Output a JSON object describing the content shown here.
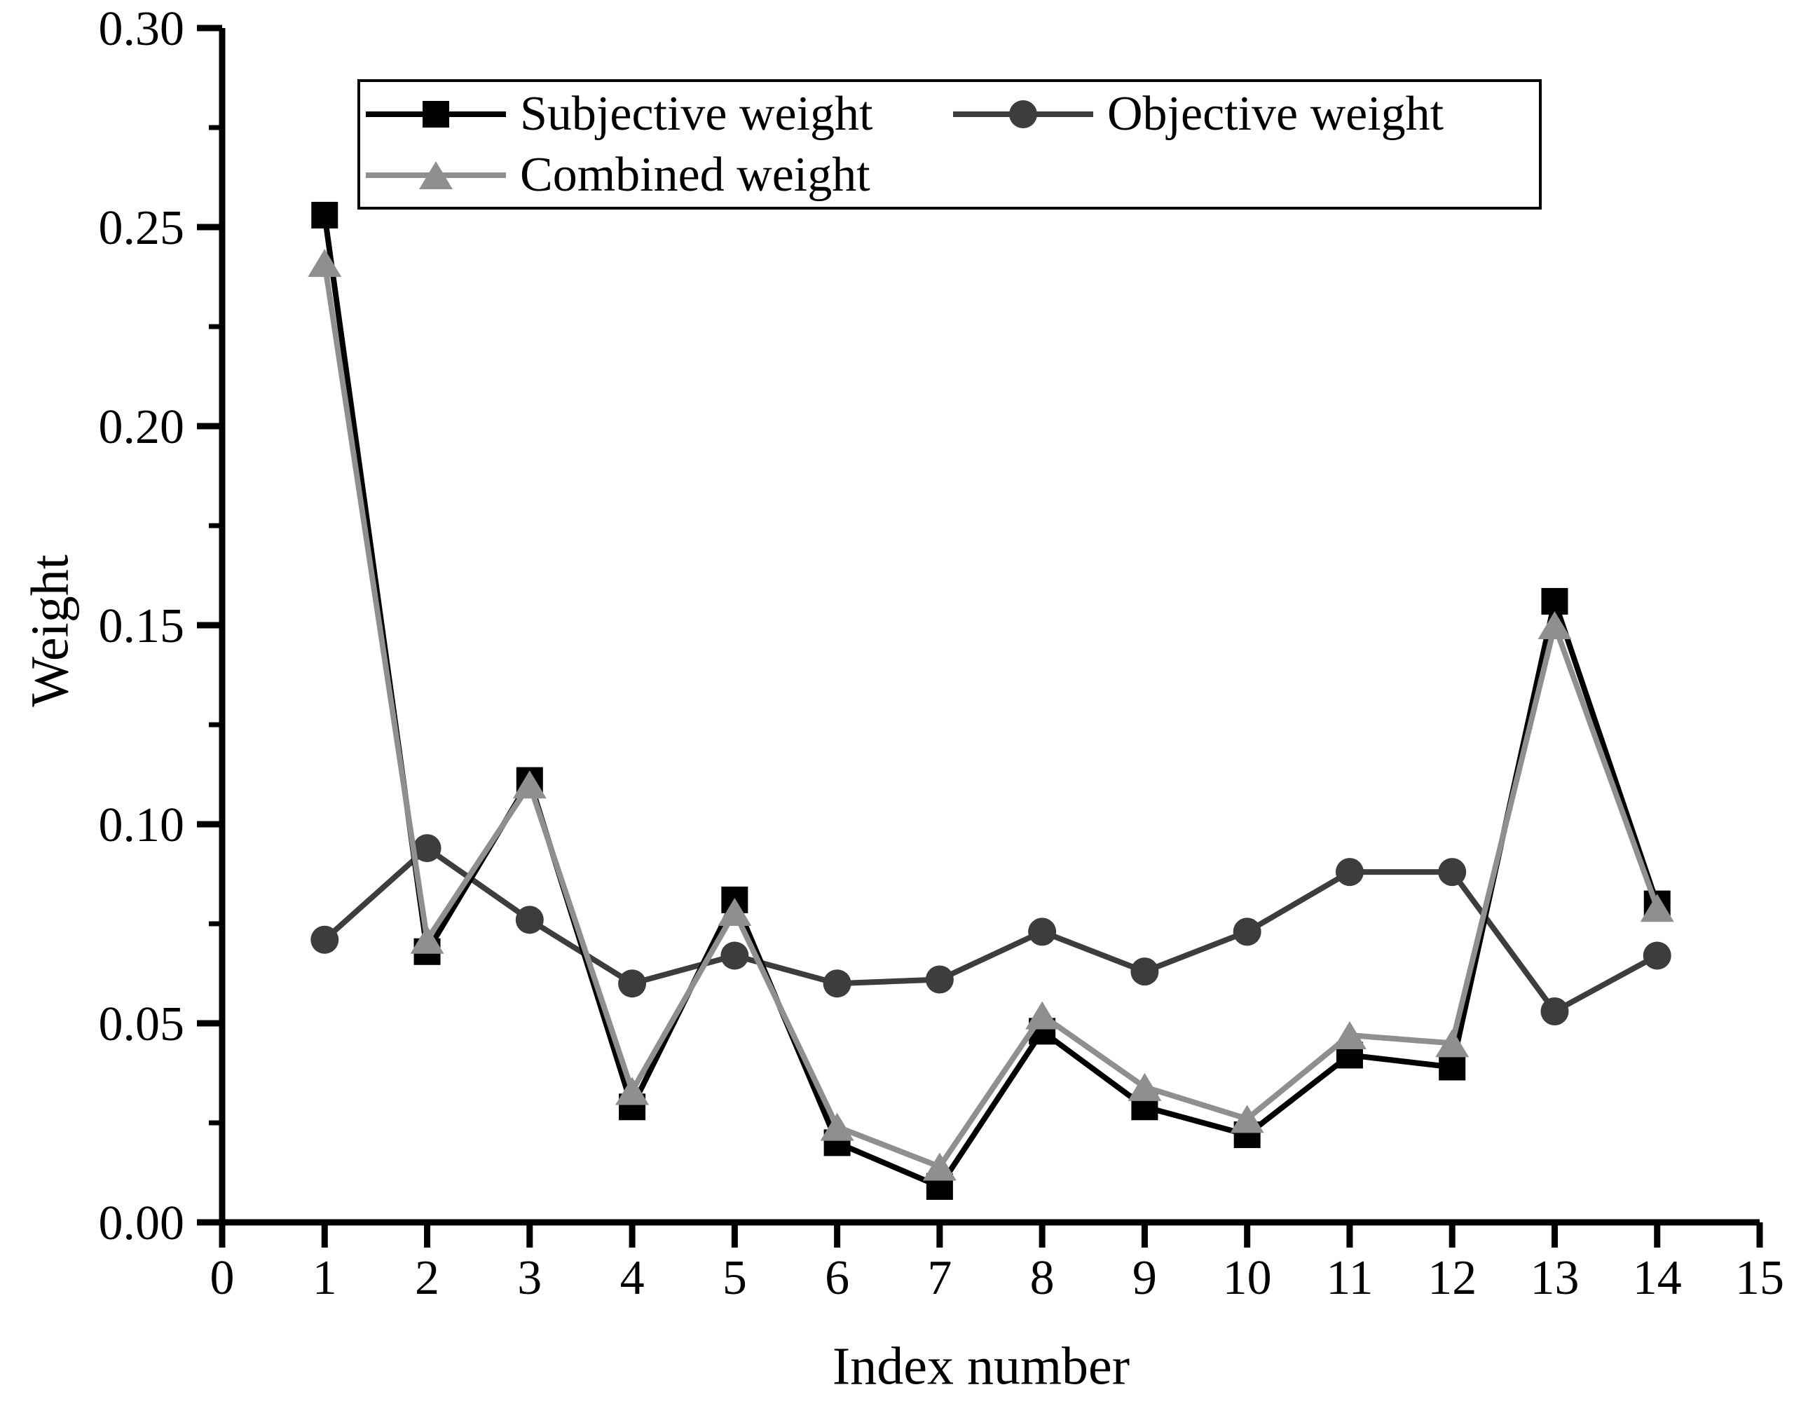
{
  "figure": {
    "background": "#ffffff",
    "text_color": "#000000"
  },
  "chart_data": {
    "type": "line",
    "title": "",
    "xlabel": "Index number",
    "ylabel": "Weight",
    "xlim": [
      0,
      15
    ],
    "ylim": [
      0.0,
      0.3
    ],
    "xticks": [
      0,
      1,
      2,
      3,
      4,
      5,
      6,
      7,
      8,
      9,
      10,
      11,
      12,
      13,
      14,
      15
    ],
    "yticks": [
      0.0,
      0.05,
      0.1,
      0.15,
      0.2,
      0.25,
      0.3
    ],
    "ytick_labels": [
      "0.00",
      "0.05",
      "0.10",
      "0.15",
      "0.20",
      "0.25",
      "0.30"
    ],
    "y_minor_step": 0.025,
    "grid": false,
    "legend_position": "top-inside",
    "x": [
      1,
      2,
      3,
      4,
      5,
      6,
      7,
      8,
      9,
      10,
      11,
      12,
      13,
      14
    ],
    "series": [
      {
        "name": "Subjective weight",
        "marker": "square",
        "color": "#000000",
        "values": [
          0.253,
          0.068,
          0.111,
          0.029,
          0.081,
          0.02,
          0.009,
          0.048,
          0.029,
          0.022,
          0.042,
          0.039,
          0.156,
          0.08
        ]
      },
      {
        "name": "Objective weight",
        "marker": "circle",
        "color": "#3d3d3d",
        "values": [
          0.071,
          0.094,
          0.076,
          0.06,
          0.067,
          0.06,
          0.061,
          0.073,
          0.063,
          0.073,
          0.088,
          0.088,
          0.053,
          0.067
        ]
      },
      {
        "name": "Combined weight",
        "marker": "triangle",
        "color": "#8f8f8f",
        "values": [
          0.241,
          0.071,
          0.11,
          0.033,
          0.078,
          0.024,
          0.014,
          0.052,
          0.034,
          0.026,
          0.047,
          0.045,
          0.15,
          0.079
        ]
      }
    ]
  }
}
